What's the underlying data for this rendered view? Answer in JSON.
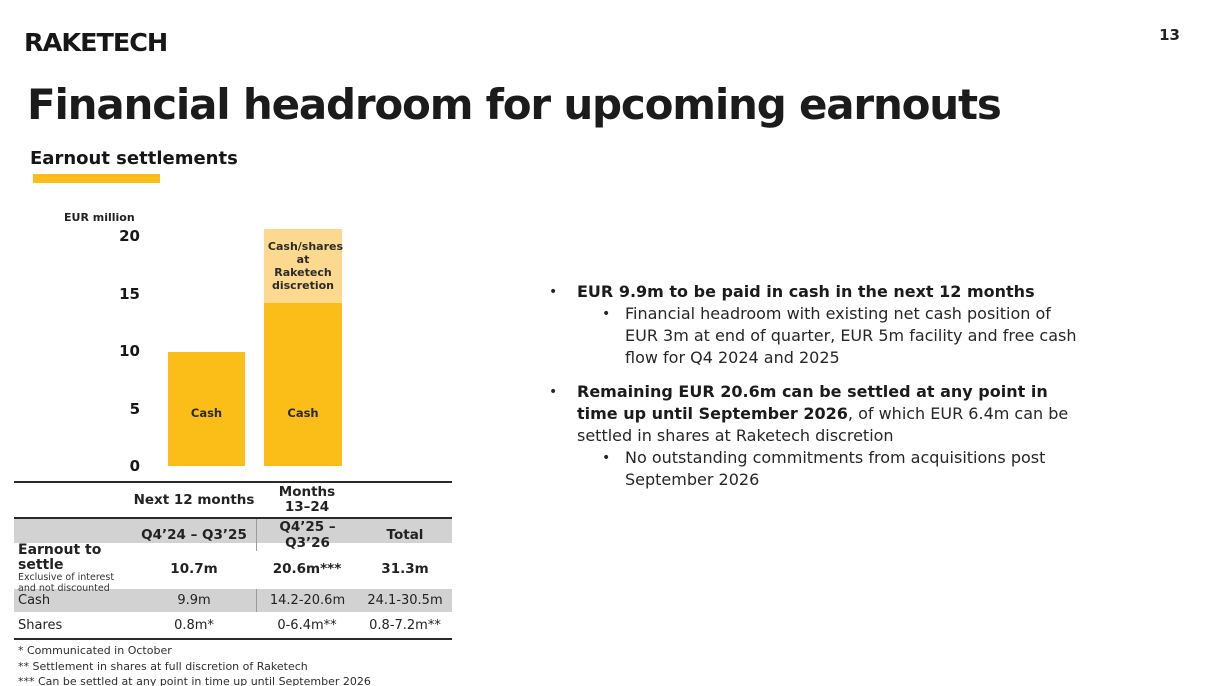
{
  "page": {
    "logo": "RAKETECH",
    "number": "13"
  },
  "title": "Financial headroom for upcoming earnouts",
  "section": {
    "heading": "Earnout settlements"
  },
  "colors": {
    "accent_yellow": "#FBBE18",
    "light_yellow": "#FCD98F",
    "table_row_gray": "#D2D2D2",
    "table_divider_gray": "#9C9C9C",
    "table_rule": "#2A2A2A"
  },
  "chart_data": {
    "type": "bar",
    "stacked": true,
    "unit_label": "EUR million",
    "y_ticks": [
      0,
      5,
      10,
      15,
      20
    ],
    "ylim": [
      0,
      20.6
    ],
    "grid": false,
    "categories": [
      "Next 12 months (Q4'24 – Q3'25)",
      "Months 13–24 (Q4'25 – Q3'26)"
    ],
    "series": [
      {
        "name": "Cash",
        "values": [
          9.9,
          14.2
        ],
        "color": "#FBBE18"
      },
      {
        "name": "Cash/shares at Raketech discretion",
        "values": [
          0,
          6.4
        ],
        "color": "#FCD98F"
      }
    ]
  },
  "table": {
    "group_headers": {
      "col2": "Next 12 months",
      "col3": "Months\n13–24"
    },
    "sub_headers": {
      "col2": "Q4’24 – Q3’25",
      "col3": "Q4’25 – Q3’26",
      "col4": "Total"
    },
    "rows": {
      "earnout": {
        "label": "Earnout to settle",
        "sublabel": "Exclusive of interest and not discounted",
        "v1": "10.7m",
        "v2": "20.6m***",
        "v3": "31.3m"
      },
      "cash": {
        "label": "Cash",
        "v1": "9.9m",
        "v2": "14.2-20.6m",
        "v3": "24.1-30.5m"
      },
      "shares": {
        "label": "Shares",
        "v1": "0.8m*",
        "v2": "0-6.4m**",
        "v3": "0.8-7.2m**"
      }
    },
    "footnotes": [
      "* Communicated in October",
      "** Settlement in shares at full discretion of Raketech",
      "*** Can be settled at any point in time up until September 2026"
    ]
  },
  "bullets": [
    {
      "bold": "EUR 9.9m to be paid in cash in the next 12 months",
      "rest": "",
      "sub": "Financial headroom with existing net cash position of EUR 3m at end of quarter, EUR 5m facility and free cash flow for Q4 2024 and 2025"
    },
    {
      "bold": "Remaining EUR 20.6m can be settled at any point in time up until September 2026",
      "rest": ", of which EUR 6.4m can be settled in shares at Raketech discretion",
      "sub": "No outstanding commitments from acquisitions post September 2026"
    }
  ],
  "markers": {
    "dot": "•"
  }
}
